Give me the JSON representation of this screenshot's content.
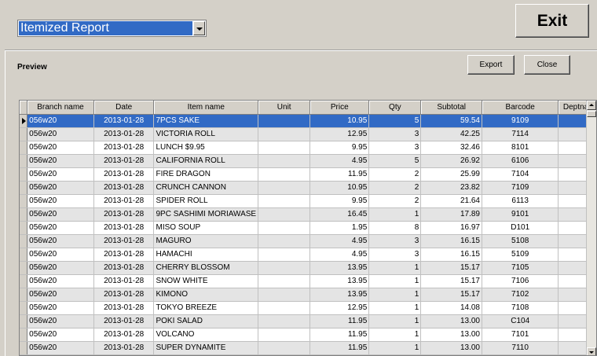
{
  "report_select": {
    "selected": "Itemized Report"
  },
  "exit_label": "Exit",
  "preview_label": "Preview",
  "export_label": "Export",
  "close_label": "Close",
  "colors": {
    "selection": "#316ac5",
    "face": "#d4d0c8",
    "alt_row": "#e4e4e4"
  },
  "columns": [
    "Branch name",
    "Date",
    "Item name",
    "Unit",
    "Price",
    "Qty",
    "Subtotal",
    "Barcode",
    "Deptnar"
  ],
  "rows": [
    [
      "056w20",
      "2013-01-28",
      "7PCS SAKE",
      "",
      "10.95",
      "5",
      "59.54",
      "9109",
      ""
    ],
    [
      "056w20",
      "2013-01-28",
      "VICTORIA ROLL",
      "",
      "12.95",
      "3",
      "42.25",
      "7114",
      ""
    ],
    [
      "056w20",
      "2013-01-28",
      "LUNCH $9.95",
      "",
      "9.95",
      "3",
      "32.46",
      "8101",
      ""
    ],
    [
      "056w20",
      "2013-01-28",
      "CALIFORNIA ROLL",
      "",
      "4.95",
      "5",
      "26.92",
      "6106",
      ""
    ],
    [
      "056w20",
      "2013-01-28",
      "FIRE DRAGON",
      "",
      "11.95",
      "2",
      "25.99",
      "7104",
      ""
    ],
    [
      "056w20",
      "2013-01-28",
      "CRUNCH CANNON",
      "",
      "10.95",
      "2",
      "23.82",
      "7109",
      ""
    ],
    [
      "056w20",
      "2013-01-28",
      "SPIDER ROLL",
      "",
      "9.95",
      "2",
      "21.64",
      "6113",
      ""
    ],
    [
      "056w20",
      "2013-01-28",
      "9PC SASHIMI MORIAWASE",
      "",
      "16.45",
      "1",
      "17.89",
      "9101",
      ""
    ],
    [
      "056w20",
      "2013-01-28",
      "MISO SOUP",
      "",
      "1.95",
      "8",
      "16.97",
      "D101",
      ""
    ],
    [
      "056w20",
      "2013-01-28",
      "MAGURO",
      "",
      "4.95",
      "3",
      "16.15",
      "5108",
      ""
    ],
    [
      "056w20",
      "2013-01-28",
      "HAMACHI",
      "",
      "4.95",
      "3",
      "16.15",
      "5109",
      ""
    ],
    [
      "056w20",
      "2013-01-28",
      "CHERRY BLOSSOM",
      "",
      "13.95",
      "1",
      "15.17",
      "7105",
      ""
    ],
    [
      "056w20",
      "2013-01-28",
      "SNOW WHITE",
      "",
      "13.95",
      "1",
      "15.17",
      "7106",
      ""
    ],
    [
      "056w20",
      "2013-01-28",
      "KIMONO",
      "",
      "13.95",
      "1",
      "15.17",
      "7102",
      ""
    ],
    [
      "056w20",
      "2013-01-28",
      "TOKYO BREEZE",
      "",
      "12.95",
      "1",
      "14.08",
      "7108",
      ""
    ],
    [
      "056w20",
      "2013-01-28",
      "POKI SALAD",
      "",
      "11.95",
      "1",
      "13.00",
      "C104",
      ""
    ],
    [
      "056w20",
      "2013-01-28",
      "VOLCANO",
      "",
      "11.95",
      "1",
      "13.00",
      "7101",
      ""
    ],
    [
      "056w20",
      "2013-01-28",
      "SUPER DYNAMITE",
      "",
      "11.95",
      "1",
      "13.00",
      "7110",
      ""
    ]
  ]
}
